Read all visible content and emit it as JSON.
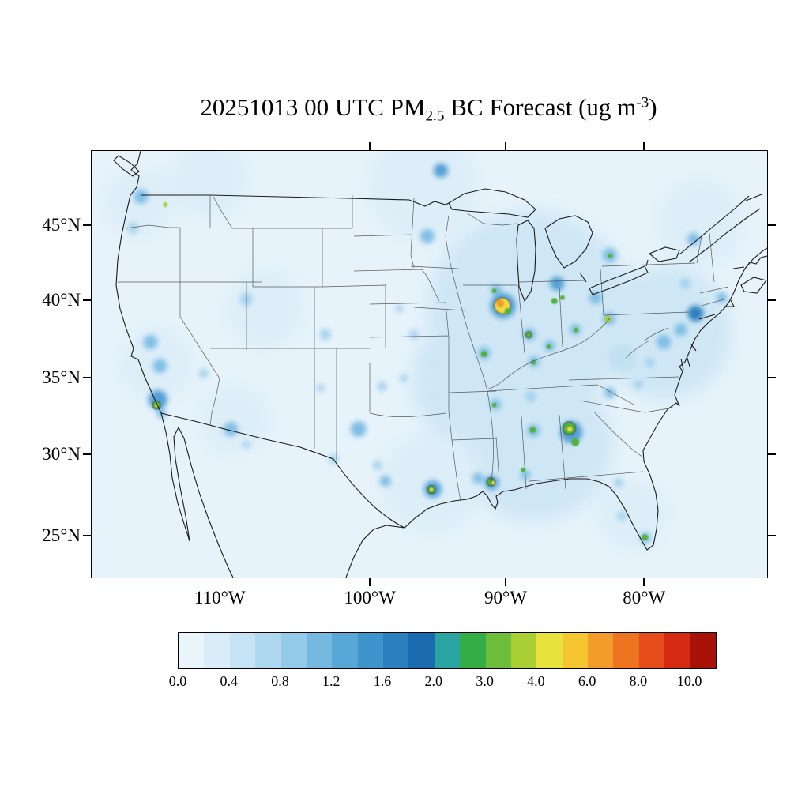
{
  "title": {
    "prefix": "20251013 00 UTC PM",
    "sub": "2.5",
    "mid": " BC Forecast (ug m",
    "sup": "-3",
    "suffix": ")"
  },
  "axes": {
    "y": [
      {
        "label": "45°N",
        "f": 0.176
      },
      {
        "label": "40°N",
        "f": 0.352
      },
      {
        "label": "35°N",
        "f": 0.533
      },
      {
        "label": "30°N",
        "f": 0.713
      },
      {
        "label": "25°N",
        "f": 0.904
      }
    ],
    "x": [
      {
        "label": "110°W",
        "f": 0.191
      },
      {
        "label": "100°W",
        "f": 0.413
      },
      {
        "label": "90°W",
        "f": 0.614
      },
      {
        "label": "80°W",
        "f": 0.819
      }
    ]
  },
  "colorbar": {
    "labels": [
      "0.0",
      "0.4",
      "0.8",
      "1.2",
      "1.6",
      "2.0",
      "3.0",
      "4.0",
      "6.0",
      "8.0",
      "10.0"
    ],
    "colors": [
      "#eaf5fb",
      "#d9edf8",
      "#c5e3f4",
      "#aed8ef",
      "#93cae8",
      "#76b9e0",
      "#58a7d7",
      "#3d94cb",
      "#2a80bd",
      "#1a6bb0",
      "#2aa5a2",
      "#35ad46",
      "#6cbe3a",
      "#a9cf35",
      "#e8e33c",
      "#f5c532",
      "#f39c2b",
      "#ee7420",
      "#e44d1a",
      "#d42a12",
      "#a81208"
    ]
  },
  "chart_data": {
    "type": "heatmap",
    "title": "20251013 00 UTC PM2.5 BC Forecast (ug m-3)",
    "variable": "PM2.5 black carbon surface concentration forecast",
    "units": "ug m-3",
    "region": "Contiguous United States with parts of Canada and Mexico",
    "lat_ticks_deg_n": [
      45,
      40,
      35,
      30,
      25
    ],
    "lon_ticks_deg_w": [
      110,
      100,
      90,
      80
    ],
    "levels": [
      0.0,
      0.2,
      0.4,
      0.6,
      0.8,
      1.0,
      1.2,
      1.4,
      1.6,
      1.8,
      2.0,
      2.5,
      3.0,
      3.5,
      4.0,
      5.0,
      6.0,
      7.0,
      8.0,
      9.0,
      10.0
    ],
    "legend_position": "bottom",
    "palette": {
      "w1": "#ddeef8",
      "w2": "#cfe7f5",
      "b1": "#c2e1f3",
      "b2": "#a5d2ed",
      "b3": "#7fbde4",
      "b4": "#539fd5",
      "b5": "#2f7fbe",
      "g": "#53b13c",
      "gy": "#a9cf35",
      "y": "#f2d93c",
      "o": "#f09d2c"
    },
    "washes": [
      {
        "n": "pacific-northwest",
        "x": 0.07,
        "y": 0.12,
        "r": 45,
        "c": "w1"
      },
      {
        "n": "british-columbia",
        "x": 0.175,
        "y": 0.065,
        "r": 50,
        "c": "w1"
      },
      {
        "n": "california-valley",
        "x": 0.096,
        "y": 0.5,
        "r": 48,
        "c": "w1"
      },
      {
        "n": "southwest",
        "x": 0.211,
        "y": 0.63,
        "r": 45,
        "c": "w1"
      },
      {
        "n": "rockies",
        "x": 0.257,
        "y": 0.37,
        "r": 50,
        "c": "w1"
      },
      {
        "n": "canadian-plains",
        "x": 0.491,
        "y": 0.083,
        "r": 70,
        "c": "w1"
      },
      {
        "n": "midwest",
        "x": 0.649,
        "y": 0.38,
        "r": 130,
        "c": "w2"
      },
      {
        "n": "mississippi-valley",
        "x": 0.579,
        "y": 0.537,
        "r": 90,
        "c": "w2"
      },
      {
        "n": "southeast",
        "x": 0.655,
        "y": 0.685,
        "r": 100,
        "c": "w2"
      },
      {
        "n": "gulf-texas",
        "x": 0.503,
        "y": 0.778,
        "r": 65,
        "c": "w1"
      },
      {
        "n": "east-coast",
        "x": 0.848,
        "y": 0.426,
        "r": 85,
        "c": "w2"
      },
      {
        "n": "florida",
        "x": 0.801,
        "y": 0.852,
        "r": 45,
        "c": "w1"
      },
      {
        "n": "northeast-canada",
        "x": 0.901,
        "y": 0.167,
        "r": 55,
        "c": "w1"
      }
    ],
    "spots": [
      {
        "n": "seattle",
        "x": 0.073,
        "y": 0.107,
        "r": 9,
        "c": "b3"
      },
      {
        "n": "portland",
        "x": 0.061,
        "y": 0.181,
        "r": 7,
        "c": "b2"
      },
      {
        "n": "sacramento-valley",
        "x": 0.087,
        "y": 0.448,
        "r": 9,
        "c": "b3"
      },
      {
        "n": "fresno-valley",
        "x": 0.101,
        "y": 0.504,
        "r": 9,
        "c": "b3"
      },
      {
        "n": "los-angeles",
        "x": 0.098,
        "y": 0.583,
        "r": 12,
        "c": "b4"
      },
      {
        "n": "san-diego",
        "x": 0.103,
        "y": 0.615,
        "r": 6,
        "c": "b3"
      },
      {
        "n": "las-vegas",
        "x": 0.166,
        "y": 0.522,
        "r": 6,
        "c": "b2"
      },
      {
        "n": "salt-lake-city",
        "x": 0.229,
        "y": 0.348,
        "r": 8,
        "c": "b2"
      },
      {
        "n": "phoenix",
        "x": 0.206,
        "y": 0.652,
        "r": 9,
        "c": "b3"
      },
      {
        "n": "tucson",
        "x": 0.229,
        "y": 0.689,
        "r": 5,
        "c": "b2"
      },
      {
        "n": "el-paso",
        "x": 0.358,
        "y": 0.722,
        "r": 6,
        "c": "b2"
      },
      {
        "n": "denver",
        "x": 0.346,
        "y": 0.43,
        "r": 7,
        "c": "b2"
      },
      {
        "n": "albuquerque",
        "x": 0.339,
        "y": 0.556,
        "r": 5,
        "c": "b2"
      },
      {
        "n": "dallas",
        "x": 0.395,
        "y": 0.652,
        "r": 10,
        "c": "b3"
      },
      {
        "n": "austin",
        "x": 0.423,
        "y": 0.737,
        "r": 6,
        "c": "b2"
      },
      {
        "n": "san-antonio",
        "x": 0.435,
        "y": 0.774,
        "r": 7,
        "c": "b3"
      },
      {
        "n": "houston",
        "x": 0.505,
        "y": 0.793,
        "r": 11,
        "c": "b4"
      },
      {
        "n": "oklahoma-city",
        "x": 0.43,
        "y": 0.552,
        "r": 6,
        "c": "b2"
      },
      {
        "n": "tulsa",
        "x": 0.462,
        "y": 0.533,
        "r": 5,
        "c": "b2"
      },
      {
        "n": "kansas-city",
        "x": 0.477,
        "y": 0.43,
        "r": 6,
        "c": "b2"
      },
      {
        "n": "omaha",
        "x": 0.456,
        "y": 0.37,
        "r": 5,
        "c": "b2"
      },
      {
        "n": "minneapolis",
        "x": 0.497,
        "y": 0.2,
        "r": 9,
        "c": "b3"
      },
      {
        "n": "winnipeg",
        "x": 0.517,
        "y": 0.046,
        "r": 9,
        "c": "b4"
      },
      {
        "n": "chicago-glow",
        "x": 0.609,
        "y": 0.363,
        "r": 16,
        "c": "b4"
      },
      {
        "n": "milwaukee",
        "x": 0.599,
        "y": 0.326,
        "r": 7,
        "c": "b3"
      },
      {
        "n": "detroit",
        "x": 0.689,
        "y": 0.311,
        "r": 9,
        "c": "b4"
      },
      {
        "n": "toronto",
        "x": 0.767,
        "y": 0.244,
        "r": 9,
        "c": "b3"
      },
      {
        "n": "cleveland",
        "x": 0.746,
        "y": 0.344,
        "r": 8,
        "c": "b3"
      },
      {
        "n": "pittsburgh",
        "x": 0.766,
        "y": 0.393,
        "r": 8,
        "c": "b3"
      },
      {
        "n": "columbus",
        "x": 0.716,
        "y": 0.419,
        "r": 7,
        "c": "b3"
      },
      {
        "n": "indianapolis",
        "x": 0.648,
        "y": 0.43,
        "r": 8,
        "c": "b3"
      },
      {
        "n": "cincinnati",
        "x": 0.678,
        "y": 0.457,
        "r": 7,
        "c": "b3"
      },
      {
        "n": "louisville",
        "x": 0.655,
        "y": 0.494,
        "r": 7,
        "c": "b3"
      },
      {
        "n": "st-louis",
        "x": 0.581,
        "y": 0.474,
        "r": 8,
        "c": "b3"
      },
      {
        "n": "nashville",
        "x": 0.65,
        "y": 0.576,
        "r": 7,
        "c": "b2"
      },
      {
        "n": "memphis",
        "x": 0.598,
        "y": 0.594,
        "r": 7,
        "c": "b3"
      },
      {
        "n": "birmingham",
        "x": 0.654,
        "y": 0.656,
        "r": 8,
        "c": "b3"
      },
      {
        "n": "atlanta-glow",
        "x": 0.71,
        "y": 0.659,
        "r": 14,
        "c": "b4"
      },
      {
        "n": "charlotte",
        "x": 0.767,
        "y": 0.567,
        "r": 7,
        "c": "b3"
      },
      {
        "n": "raleigh",
        "x": 0.809,
        "y": 0.548,
        "r": 6,
        "c": "b2"
      },
      {
        "n": "richmond",
        "x": 0.826,
        "y": 0.496,
        "r": 6,
        "c": "b2"
      },
      {
        "n": "washington-dc",
        "x": 0.847,
        "y": 0.448,
        "r": 9,
        "c": "b3"
      },
      {
        "n": "philadelphia",
        "x": 0.872,
        "y": 0.419,
        "r": 8,
        "c": "b3"
      },
      {
        "n": "new-york",
        "x": 0.894,
        "y": 0.381,
        "r": 10,
        "c": "b5"
      },
      {
        "n": "boston",
        "x": 0.933,
        "y": 0.344,
        "r": 7,
        "c": "b3"
      },
      {
        "n": "albany",
        "x": 0.879,
        "y": 0.311,
        "r": 7,
        "c": "b2"
      },
      {
        "n": "montreal",
        "x": 0.891,
        "y": 0.207,
        "r": 8,
        "c": "b3"
      },
      {
        "n": "new-orleans",
        "x": 0.592,
        "y": 0.778,
        "r": 9,
        "c": "b4"
      },
      {
        "n": "baton-rouge",
        "x": 0.572,
        "y": 0.767,
        "r": 7,
        "c": "b3"
      },
      {
        "n": "mobile",
        "x": 0.642,
        "y": 0.759,
        "r": 6,
        "c": "b3"
      },
      {
        "n": "jacksonville",
        "x": 0.78,
        "y": 0.778,
        "r": 6,
        "c": "b2"
      },
      {
        "n": "tampa",
        "x": 0.785,
        "y": 0.856,
        "r": 6,
        "c": "b2"
      },
      {
        "n": "miami",
        "x": 0.82,
        "y": 0.907,
        "r": 7,
        "c": "b3"
      },
      {
        "n": "appalachia",
        "x": 0.786,
        "y": 0.485,
        "r": 18,
        "c": "b1"
      }
    ],
    "dots": [
      {
        "n": "seattle-east",
        "x": 0.109,
        "y": 0.126,
        "r": 3,
        "c": "gy"
      },
      {
        "n": "la-basin",
        "x": 0.096,
        "y": 0.596,
        "r": 5,
        "c": "g",
        "ring": true
      },
      {
        "n": "la-core",
        "x": 0.096,
        "y": 0.596,
        "r": 2,
        "c": "y"
      },
      {
        "n": "chicago-core",
        "x": 0.608,
        "y": 0.363,
        "r": 10,
        "c": "y",
        "ring": true
      },
      {
        "n": "chicago-orange",
        "x": 0.605,
        "y": 0.357,
        "r": 5,
        "c": "o"
      },
      {
        "n": "gary",
        "x": 0.616,
        "y": 0.376,
        "r": 4,
        "c": "g"
      },
      {
        "n": "milwaukee-dot",
        "x": 0.596,
        "y": 0.328,
        "r": 3,
        "c": "g"
      },
      {
        "n": "detroit-dot",
        "x": 0.685,
        "y": 0.352,
        "r": 4,
        "c": "g"
      },
      {
        "n": "windsor-dot",
        "x": 0.697,
        "y": 0.344,
        "r": 3,
        "c": "g"
      },
      {
        "n": "toronto-dot",
        "x": 0.768,
        "y": 0.246,
        "r": 3,
        "c": "g"
      },
      {
        "n": "pittsburgh-dot",
        "x": 0.764,
        "y": 0.394,
        "r": 4,
        "c": "gy"
      },
      {
        "n": "columbus-dot",
        "x": 0.717,
        "y": 0.42,
        "r": 3,
        "c": "g"
      },
      {
        "n": "indianapolis-dot",
        "x": 0.647,
        "y": 0.431,
        "r": 4,
        "c": "g",
        "ring": true
      },
      {
        "n": "cincinnati-dot",
        "x": 0.677,
        "y": 0.459,
        "r": 3,
        "c": "g"
      },
      {
        "n": "louisville-dot",
        "x": 0.654,
        "y": 0.496,
        "r": 3,
        "c": "g"
      },
      {
        "n": "st-louis-dot",
        "x": 0.581,
        "y": 0.476,
        "r": 4,
        "c": "g"
      },
      {
        "n": "memphis-dot",
        "x": 0.596,
        "y": 0.596,
        "r": 3,
        "c": "g"
      },
      {
        "n": "atlanta-core",
        "x": 0.707,
        "y": 0.65,
        "r": 8,
        "c": "g",
        "ring": true
      },
      {
        "n": "atlanta-south",
        "x": 0.716,
        "y": 0.683,
        "r": 5,
        "c": "g"
      },
      {
        "n": "atlanta-yellow",
        "x": 0.708,
        "y": 0.652,
        "r": 3,
        "c": "y"
      },
      {
        "n": "birmingham-dot",
        "x": 0.653,
        "y": 0.654,
        "r": 4,
        "c": "g"
      },
      {
        "n": "houston-core",
        "x": 0.503,
        "y": 0.794,
        "r": 5,
        "c": "g",
        "ring": true
      },
      {
        "n": "houston-yellow",
        "x": 0.503,
        "y": 0.794,
        "r": 2,
        "c": "y"
      },
      {
        "n": "new-orleans-core",
        "x": 0.591,
        "y": 0.776,
        "r": 5,
        "c": "g",
        "ring": true
      },
      {
        "n": "new-orleans-yellow",
        "x": 0.594,
        "y": 0.778,
        "r": 2,
        "c": "y"
      },
      {
        "n": "gulfport-dot",
        "x": 0.639,
        "y": 0.748,
        "r": 3,
        "c": "g"
      },
      {
        "n": "miami-dot",
        "x": 0.819,
        "y": 0.906,
        "r": 4,
        "c": "g"
      }
    ]
  }
}
